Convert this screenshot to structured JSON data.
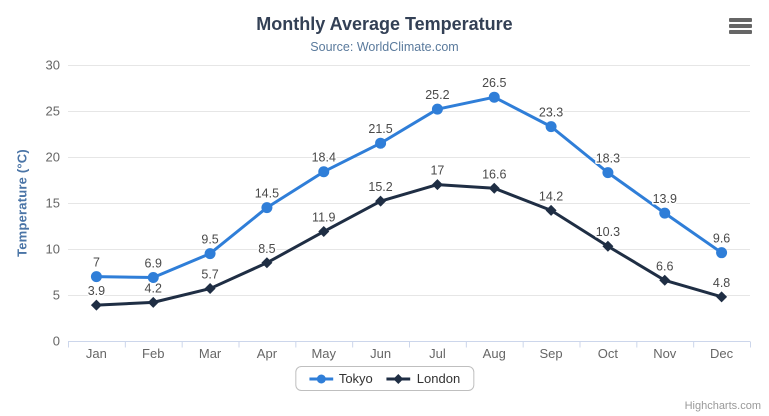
{
  "header": {
    "title": "Monthly Average Temperature",
    "subtitle": "Source: WorldClimate.com"
  },
  "toolbar": {
    "menu_icon": "hamburger-context-menu"
  },
  "chart_data": {
    "type": "line",
    "categories": [
      "Jan",
      "Feb",
      "Mar",
      "Apr",
      "May",
      "Jun",
      "Jul",
      "Aug",
      "Sep",
      "Oct",
      "Nov",
      "Dec"
    ],
    "series": [
      {
        "name": "Tokyo",
        "color": "#2f7ed8",
        "marker": "circle",
        "values": [
          7,
          6.9,
          9.5,
          14.5,
          18.4,
          21.5,
          25.2,
          26.5,
          23.3,
          18.3,
          13.9,
          9.6
        ]
      },
      {
        "name": "London",
        "color": "#1f2e44",
        "marker": "diamond",
        "values": [
          3.9,
          4.2,
          5.7,
          8.5,
          11.9,
          15.2,
          17,
          16.6,
          14.2,
          10.3,
          6.6,
          4.8
        ]
      }
    ],
    "title": "Monthly Average Temperature",
    "subtitle": "Source: WorldClimate.com",
    "xlabel": "",
    "ylabel": "Temperature (°C)",
    "ylim": [
      0,
      30
    ],
    "ytick_step": 5,
    "yticks": [
      0,
      5,
      10,
      15,
      20,
      25,
      30
    ],
    "grid": true,
    "data_labels": true,
    "legend_position": "bottom"
  },
  "colors": {
    "title": "#334055",
    "subtitle": "#5a7a9c",
    "ytitle": "#4a74a6",
    "axis_label": "#666666",
    "data_label": "#4a4a4a",
    "gridline": "#e6e6e6",
    "axis_line": "#ccd6eb"
  },
  "credit": {
    "label": "Highcharts.com"
  }
}
